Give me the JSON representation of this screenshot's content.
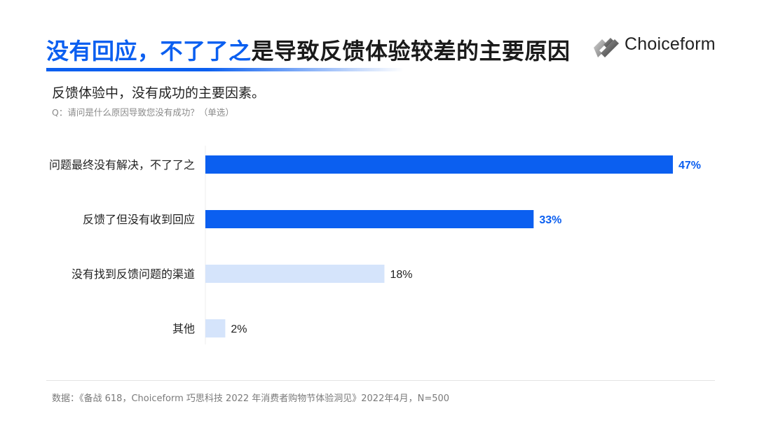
{
  "header": {
    "title_highlight": "没有回应，不了了之",
    "title_rest": "是导致反馈体验较差的主要原因",
    "logo_text": "Choiceform"
  },
  "subtitle": "反馈体验中，没有成功的主要因素。",
  "question": "Q：请问是什么原因导致您没有成功？（单选）",
  "footer": "数据：《备战 618，Choiceform 巧思科技 2022 年消费者购物节体验洞见》2022年4月，N=500",
  "colors": {
    "accent": "#0b5ff0",
    "highlight_bar": "#0b5ff0",
    "muted_bar": "#d5e4fb",
    "highlight_label": "#0b5ff0",
    "muted_label": "#222222"
  },
  "chart_data": {
    "type": "bar",
    "orientation": "horizontal",
    "categories": [
      "问题最终没有解决，不了了之",
      "反馈了但没有收到回应",
      "没有找到反馈问题的渠道",
      "其他"
    ],
    "values": [
      47,
      33,
      18,
      2
    ],
    "value_labels": [
      "47%",
      "33%",
      "18%",
      "2%"
    ],
    "highlighted": [
      true,
      true,
      false,
      false
    ],
    "unit": "%",
    "xlim": [
      0,
      47
    ],
    "grid": false,
    "legend": "none"
  }
}
